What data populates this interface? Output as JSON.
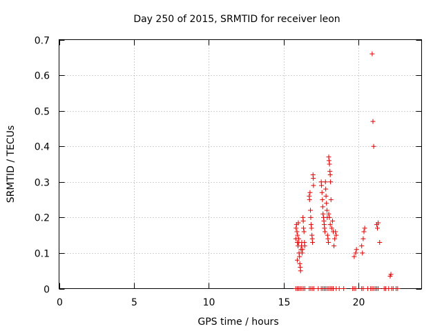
{
  "chart_data": {
    "type": "scatter",
    "title": "Day 250 of 2015, SRMTID for receiver leon",
    "xlabel": "GPS time / hours",
    "ylabel": "SRMTID / TECUs",
    "xlim": [
      0,
      24.2
    ],
    "ylim": [
      0,
      0.7
    ],
    "x_ticks": [
      0,
      5,
      10,
      15,
      20
    ],
    "x_tick_labels": [
      "0",
      "5",
      "10",
      "15",
      "20"
    ],
    "y_ticks": [
      0,
      0.1,
      0.2,
      0.3,
      0.4,
      0.5,
      0.6,
      0.7
    ],
    "y_tick_labels": [
      "0",
      "0.1",
      "0.2",
      "0.3",
      "0.4",
      "0.5",
      "0.6",
      "0.7"
    ],
    "grid": true,
    "marker": "+",
    "color": "#e00000",
    "series": [
      {
        "name": "SRMTID",
        "points": [
          [
            15.8,
            0.0
          ],
          [
            15.9,
            0.0
          ],
          [
            16.0,
            0.0
          ],
          [
            16.1,
            0.0
          ],
          [
            16.2,
            0.0
          ],
          [
            16.3,
            0.0
          ],
          [
            16.4,
            0.0
          ],
          [
            16.7,
            0.0
          ],
          [
            16.8,
            0.0
          ],
          [
            16.9,
            0.0
          ],
          [
            17.0,
            0.0
          ],
          [
            17.3,
            0.0
          ],
          [
            17.5,
            0.0
          ],
          [
            17.6,
            0.0
          ],
          [
            17.7,
            0.0
          ],
          [
            17.8,
            0.0
          ],
          [
            17.9,
            0.0
          ],
          [
            18.0,
            0.0
          ],
          [
            18.1,
            0.0
          ],
          [
            18.2,
            0.0
          ],
          [
            18.3,
            0.0
          ],
          [
            18.5,
            0.0
          ],
          [
            18.7,
            0.0
          ],
          [
            19.0,
            0.0
          ],
          [
            19.6,
            0.0
          ],
          [
            19.7,
            0.0
          ],
          [
            19.8,
            0.0
          ],
          [
            20.2,
            0.0
          ],
          [
            20.3,
            0.0
          ],
          [
            20.6,
            0.0
          ],
          [
            20.8,
            0.0
          ],
          [
            20.9,
            0.0
          ],
          [
            21.0,
            0.0
          ],
          [
            21.1,
            0.0
          ],
          [
            21.2,
            0.0
          ],
          [
            21.3,
            0.0
          ],
          [
            21.7,
            0.0
          ],
          [
            21.8,
            0.0
          ],
          [
            22.0,
            0.0
          ],
          [
            22.2,
            0.0
          ],
          [
            22.3,
            0.0
          ],
          [
            22.5,
            0.0
          ],
          [
            22.6,
            0.0
          ],
          [
            15.8,
            0.14
          ],
          [
            15.82,
            0.17
          ],
          [
            15.85,
            0.18
          ],
          [
            15.88,
            0.16
          ],
          [
            15.9,
            0.13
          ],
          [
            15.92,
            0.15
          ],
          [
            15.95,
            0.12
          ],
          [
            15.97,
            0.185
          ],
          [
            16.0,
            0.13
          ],
          [
            16.02,
            0.1
          ],
          [
            16.05,
            0.09
          ],
          [
            16.07,
            0.07
          ],
          [
            16.1,
            0.06
          ],
          [
            16.12,
            0.05
          ],
          [
            16.15,
            0.11
          ],
          [
            16.18,
            0.12
          ],
          [
            16.2,
            0.13
          ],
          [
            16.22,
            0.1
          ],
          [
            16.25,
            0.11
          ],
          [
            16.28,
            0.2
          ],
          [
            16.3,
            0.19
          ],
          [
            16.32,
            0.17
          ],
          [
            16.35,
            0.16
          ],
          [
            16.38,
            0.13
          ],
          [
            16.4,
            0.12
          ],
          [
            15.9,
            0.08
          ],
          [
            16.0,
            0.14
          ],
          [
            16.7,
            0.26
          ],
          [
            16.72,
            0.25
          ],
          [
            16.75,
            0.27
          ],
          [
            16.78,
            0.22
          ],
          [
            16.8,
            0.2
          ],
          [
            16.82,
            0.18
          ],
          [
            16.85,
            0.17
          ],
          [
            16.88,
            0.15
          ],
          [
            16.9,
            0.14
          ],
          [
            16.92,
            0.13
          ],
          [
            16.95,
            0.32
          ],
          [
            16.97,
            0.31
          ],
          [
            16.98,
            0.29
          ],
          [
            17.5,
            0.3
          ],
          [
            17.52,
            0.29
          ],
          [
            17.55,
            0.27
          ],
          [
            17.58,
            0.25
          ],
          [
            17.6,
            0.23
          ],
          [
            17.62,
            0.21
          ],
          [
            17.65,
            0.2
          ],
          [
            17.68,
            0.19
          ],
          [
            17.7,
            0.18
          ],
          [
            17.72,
            0.17
          ],
          [
            17.75,
            0.16
          ],
          [
            17.78,
            0.3
          ],
          [
            17.8,
            0.28
          ],
          [
            17.82,
            0.26
          ],
          [
            17.85,
            0.24
          ],
          [
            17.88,
            0.22
          ],
          [
            17.9,
            0.2
          ],
          [
            17.92,
            0.15
          ],
          [
            17.95,
            0.14
          ],
          [
            17.98,
            0.13
          ],
          [
            18.0,
            0.37
          ],
          [
            18.02,
            0.36
          ],
          [
            18.05,
            0.35
          ],
          [
            18.08,
            0.33
          ],
          [
            18.1,
            0.32
          ],
          [
            18.12,
            0.3
          ],
          [
            18.0,
            0.21
          ],
          [
            18.05,
            0.2
          ],
          [
            18.1,
            0.18
          ],
          [
            18.15,
            0.25
          ],
          [
            18.2,
            0.17
          ],
          [
            18.25,
            0.19
          ],
          [
            18.3,
            0.16
          ],
          [
            18.35,
            0.12
          ],
          [
            18.4,
            0.14
          ],
          [
            18.45,
            0.16
          ],
          [
            18.5,
            0.15
          ],
          [
            19.7,
            0.09
          ],
          [
            19.8,
            0.1
          ],
          [
            19.85,
            0.11
          ],
          [
            20.2,
            0.12
          ],
          [
            20.25,
            0.1
          ],
          [
            20.3,
            0.14
          ],
          [
            20.35,
            0.16
          ],
          [
            20.4,
            0.17
          ],
          [
            20.9,
            0.66
          ],
          [
            20.95,
            0.47
          ],
          [
            21.0,
            0.4
          ],
          [
            21.2,
            0.18
          ],
          [
            21.25,
            0.17
          ],
          [
            21.3,
            0.185
          ],
          [
            21.4,
            0.13
          ],
          [
            22.1,
            0.035
          ],
          [
            22.15,
            0.04
          ]
        ]
      }
    ]
  }
}
